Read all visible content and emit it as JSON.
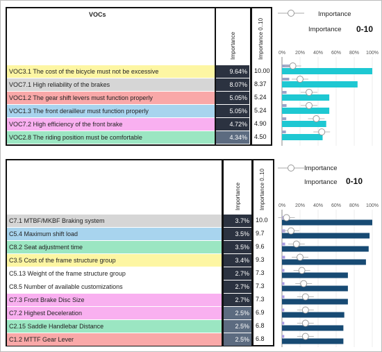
{
  "top": {
    "header": "VOCs",
    "col_importance": "Importance",
    "col_importance_scale": "Importance 0..10",
    "legend_item": "Importance",
    "legend_second": "Importance",
    "legend_scale": "0-10"
  },
  "bottom": {
    "col_importance": "Importance",
    "col_importance_scale": "Importance 0..10",
    "legend_item": "Importance",
    "legend_second": "Importance",
    "legend_scale": "0-10"
  },
  "chart_data": [
    {
      "type": "bar",
      "categories": [
        "VOC3.1 The cost of the bicycle must not be excessive",
        "VOC7.1 High reliability of the brakes",
        "VOC1.2 The gear shift levers must function properly",
        "VOC1.3 The front derailleur must function properly",
        "VOC7.2 High efficiency of the front brake",
        "VOC2.8 The riding position must be comfortable"
      ],
      "importance_pct_labels": [
        "9.64%",
        "8.07%",
        "5.05%",
        "5.05%",
        "4.72%",
        "4.34%"
      ],
      "score_labels": [
        "10.00",
        "8.37",
        "5.24",
        "5.24",
        "4.90",
        "4.50"
      ],
      "series": [
        {
          "name": "Importance",
          "values": [
            9.64,
            8.07,
            5.05,
            5.05,
            4.72,
            4.34
          ]
        },
        {
          "name": "Importance 0-10",
          "values": [
            10.0,
            8.37,
            5.24,
            5.24,
            4.9,
            4.5
          ]
        }
      ],
      "xticks": [
        "0%",
        "20%",
        "40%",
        "60%",
        "80%",
        "100%"
      ],
      "xlim": [
        0,
        100
      ],
      "row_colors": [
        "#fdf6a3",
        "#d6d6d6",
        "#f9a8a8",
        "#a8d4ee",
        "#f9b0f0",
        "#9be6c2"
      ],
      "bar_color": "#1ec8d2",
      "marker_color": "#9aa4c7"
    },
    {
      "type": "bar",
      "categories": [
        "C7.1 MTBF/MKBF Braking system",
        "C5.4 Maximum shift load",
        "C8.2 Seat adjustment time",
        "C3.5 Cost of the frame structure group",
        "C5.13 Weight of the frame structure group",
        "C8.5 Number of available customizations",
        "C7.3 Front Brake Disc Size",
        "C7.2 Highest Deceleration",
        "C2.15 Saddle Handlebar Distance",
        "C1.2 MTTF Gear Lever"
      ],
      "importance_pct_labels": [
        "3.7%",
        "3.5%",
        "3.5%",
        "3.4%",
        "2.7%",
        "2.7%",
        "2.7%",
        "2.5%",
        "2.5%",
        "2.5%"
      ],
      "score_labels": [
        "10.0",
        "9.7",
        "9.6",
        "9.3",
        "7.3",
        "7.3",
        "7.3",
        "6.9",
        "6.8",
        "6.8"
      ],
      "series": [
        {
          "name": "Importance",
          "values": [
            3.7,
            3.5,
            3.5,
            3.4,
            2.7,
            2.7,
            2.7,
            2.5,
            2.5,
            2.5
          ]
        },
        {
          "name": "Importance 0-10",
          "values": [
            10.0,
            9.7,
            9.6,
            9.3,
            7.3,
            7.3,
            7.3,
            6.9,
            6.8,
            6.8
          ]
        }
      ],
      "xticks": [
        "0%",
        "20%",
        "40%",
        "60%",
        "80%",
        "100%"
      ],
      "xlim": [
        0,
        100
      ],
      "row_colors": [
        "#d6d6d6",
        "#a8d4ee",
        "#9be6c2",
        "#fdf6a3",
        "#ffffff",
        "#ffffff",
        "#f9b0f0",
        "#f9b0f0",
        "#9be6c2",
        "#f9a8a8"
      ],
      "bar_color": "#174a73",
      "marker_color": "#a99be0"
    }
  ]
}
